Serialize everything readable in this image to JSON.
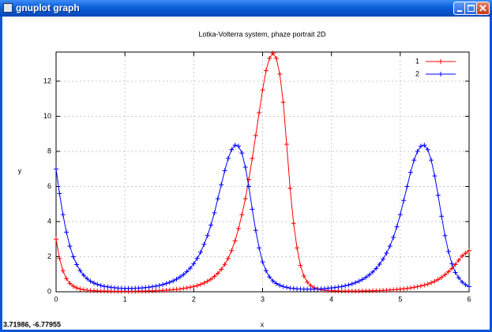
{
  "window": {
    "title": "gnuplot graph",
    "status": "3.71986, -6.77955"
  },
  "chart_data": {
    "type": "line",
    "title": "Lotka-Volterra system, phaze portrait 2D",
    "x_label": "x",
    "y_label": "y",
    "x": [
      0,
      0.05,
      0.1,
      0.15,
      0.2,
      0.25,
      0.3,
      0.35,
      0.4,
      0.45,
      0.5,
      0.55,
      0.6,
      0.65,
      0.7,
      0.75,
      0.8,
      0.85,
      0.9,
      0.95,
      1,
      1.05,
      1.1,
      1.15,
      1.2,
      1.25,
      1.3,
      1.35,
      1.4,
      1.45,
      1.5,
      1.55,
      1.6,
      1.65,
      1.7,
      1.75,
      1.8,
      1.85,
      1.9,
      1.95,
      2,
      2.05,
      2.1,
      2.15,
      2.2,
      2.25,
      2.3,
      2.35,
      2.4,
      2.45,
      2.5,
      2.55,
      2.6,
      2.65,
      2.7,
      2.75,
      2.8,
      2.85,
      2.9,
      2.95,
      3,
      3.05,
      3.1,
      3.15,
      3.2,
      3.25,
      3.3,
      3.35,
      3.4,
      3.45,
      3.5,
      3.55,
      3.6,
      3.65,
      3.7,
      3.75,
      3.8,
      3.85,
      3.9,
      3.95,
      4,
      4.05,
      4.1,
      4.15,
      4.2,
      4.25,
      4.3,
      4.35,
      4.4,
      4.45,
      4.5,
      4.55,
      4.6,
      4.65,
      4.7,
      4.75,
      4.8,
      4.85,
      4.9,
      4.95,
      5,
      5.05,
      5.1,
      5.15,
      5.2,
      5.25,
      5.3,
      5.35,
      5.4,
      5.45,
      5.5,
      5.55,
      5.6,
      5.65,
      5.7,
      5.75,
      5.8,
      5.85,
      5.9,
      5.95,
      6
    ],
    "series": [
      {
        "name": "1",
        "color": "#ff0000",
        "values": [
          3.0,
          1.9,
          1.2,
          0.75,
          0.48,
          0.32,
          0.22,
          0.16,
          0.12,
          0.09,
          0.07,
          0.06,
          0.05,
          0.04,
          0.04,
          0.04,
          0.03,
          0.03,
          0.03,
          0.03,
          0.03,
          0.03,
          0.03,
          0.03,
          0.04,
          0.04,
          0.04,
          0.05,
          0.05,
          0.06,
          0.07,
          0.08,
          0.09,
          0.1,
          0.12,
          0.14,
          0.16,
          0.19,
          0.22,
          0.26,
          0.3,
          0.35,
          0.42,
          0.5,
          0.6,
          0.72,
          0.87,
          1.05,
          1.28,
          1.56,
          1.9,
          2.35,
          2.9,
          3.6,
          4.4,
          5.3,
          6.4,
          7.6,
          8.9,
          10.2,
          11.5,
          12.6,
          13.3,
          13.6,
          13.3,
          12.4,
          10.8,
          8.4,
          5.9,
          3.9,
          2.5,
          1.5,
          0.9,
          0.55,
          0.35,
          0.23,
          0.16,
          0.12,
          0.09,
          0.07,
          0.06,
          0.05,
          0.05,
          0.04,
          0.04,
          0.04,
          0.04,
          0.04,
          0.04,
          0.05,
          0.05,
          0.05,
          0.06,
          0.06,
          0.07,
          0.08,
          0.09,
          0.1,
          0.11,
          0.13,
          0.15,
          0.17,
          0.19,
          0.22,
          0.25,
          0.29,
          0.33,
          0.38,
          0.44,
          0.51,
          0.6,
          0.7,
          0.82,
          0.97,
          1.14,
          1.33,
          1.55,
          1.8,
          2.05,
          2.2,
          2.35
        ]
      },
      {
        "name": "2",
        "color": "#0000ff",
        "values": [
          7.0,
          5.6,
          4.4,
          3.4,
          2.6,
          2.0,
          1.55,
          1.2,
          0.95,
          0.75,
          0.6,
          0.5,
          0.42,
          0.36,
          0.31,
          0.28,
          0.25,
          0.23,
          0.21,
          0.2,
          0.19,
          0.19,
          0.19,
          0.2,
          0.21,
          0.22,
          0.24,
          0.26,
          0.29,
          0.32,
          0.36,
          0.41,
          0.47,
          0.54,
          0.62,
          0.72,
          0.84,
          0.98,
          1.15,
          1.35,
          1.6,
          1.9,
          2.25,
          2.7,
          3.2,
          3.8,
          4.5,
          5.3,
          6.1,
          6.9,
          7.6,
          8.1,
          8.35,
          8.3,
          7.9,
          7.1,
          6.0,
          4.7,
          3.5,
          2.5,
          1.7,
          1.2,
          0.85,
          0.62,
          0.47,
          0.37,
          0.3,
          0.25,
          0.21,
          0.19,
          0.17,
          0.16,
          0.15,
          0.15,
          0.15,
          0.15,
          0.16,
          0.17,
          0.18,
          0.2,
          0.22,
          0.24,
          0.27,
          0.3,
          0.34,
          0.39,
          0.45,
          0.52,
          0.6,
          0.7,
          0.82,
          0.96,
          1.13,
          1.33,
          1.57,
          1.86,
          2.2,
          2.6,
          3.1,
          3.7,
          4.4,
          5.2,
          6.0,
          6.8,
          7.5,
          8.0,
          8.3,
          8.35,
          8.1,
          7.5,
          6.6,
          5.5,
          4.3,
          3.2,
          2.3,
          1.6,
          1.1,
          0.8,
          0.55,
          0.4,
          0.3
        ]
      }
    ],
    "xlim": [
      0,
      6
    ],
    "ylim": [
      0,
      13.66
    ],
    "xticks": [
      0,
      1,
      2,
      3,
      4,
      5,
      6
    ],
    "yticks": [
      0,
      2,
      4,
      6,
      8,
      10,
      12
    ],
    "grid": true,
    "legend": "top-right",
    "markers": "+"
  }
}
